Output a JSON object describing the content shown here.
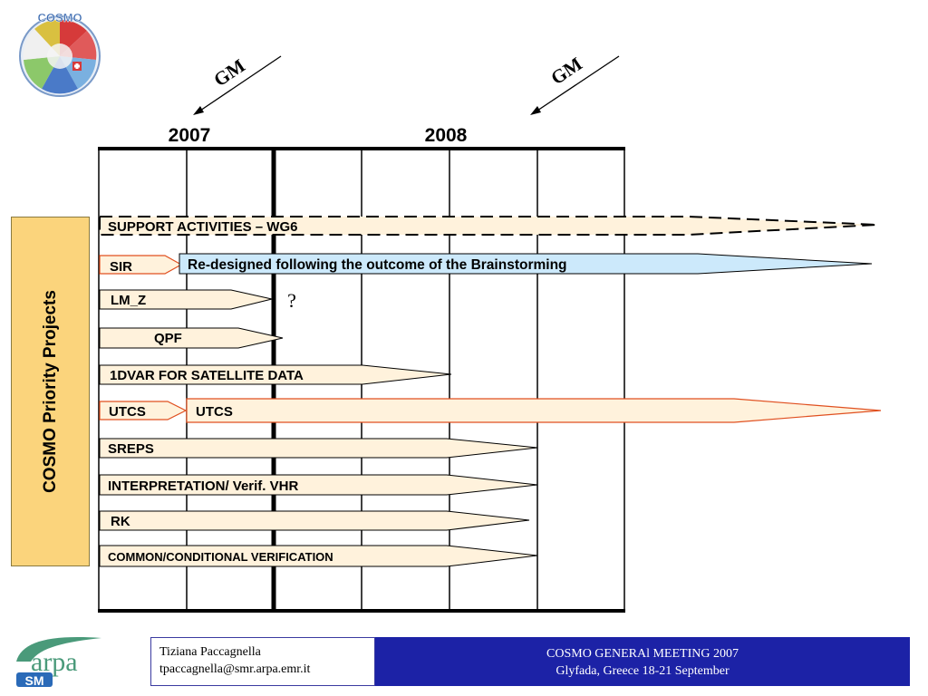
{
  "header": {
    "milestones": [
      {
        "label": "GM"
      },
      {
        "label": "GM"
      }
    ],
    "years": [
      "2007",
      "2008"
    ]
  },
  "side_label": "COSMO Priority Projects",
  "support_bar": {
    "label": "SUPPORT ACTIVITIES – WG6"
  },
  "projects": [
    {
      "label": "SIR"
    },
    {
      "label": "LM_Z"
    },
    {
      "label": "QPF"
    },
    {
      "label": "1DVAR FOR SATELLITE DATA"
    },
    {
      "label": "UTCS"
    },
    {
      "label": "SREPS"
    },
    {
      "label": "INTERPRETATION/ Verif. VHR"
    },
    {
      "label": "RK"
    },
    {
      "label": "COMMON/CONDITIONAL VERIFICATION"
    }
  ],
  "sir_extension": {
    "label": "Re-designed following the outcome of the Brainstorming"
  },
  "utcs_extension": {
    "label": "UTCS"
  },
  "question_mark": "?",
  "footer": {
    "author": "Tiziana Paccagnella",
    "email": "tpaccagnella@smr.arpa.emr.it",
    "event": "COSMO GENERAl MEETING 2007",
    "location": "Glyfada, Greece 18-21 September"
  },
  "logos": {
    "cosmo": "COSMO",
    "arpa": "arpa",
    "arpa_sub": "SM"
  },
  "colors": {
    "bar_fill": "#fff2dc",
    "sir_extension_fill": "#cce9fb",
    "utcs_extension_fill": "#fff2dc",
    "orange_border": "#e05020",
    "side_box": "#fbd47c",
    "footer_band": "#1c22a6",
    "arpa_green": "#4a9a7a"
  }
}
